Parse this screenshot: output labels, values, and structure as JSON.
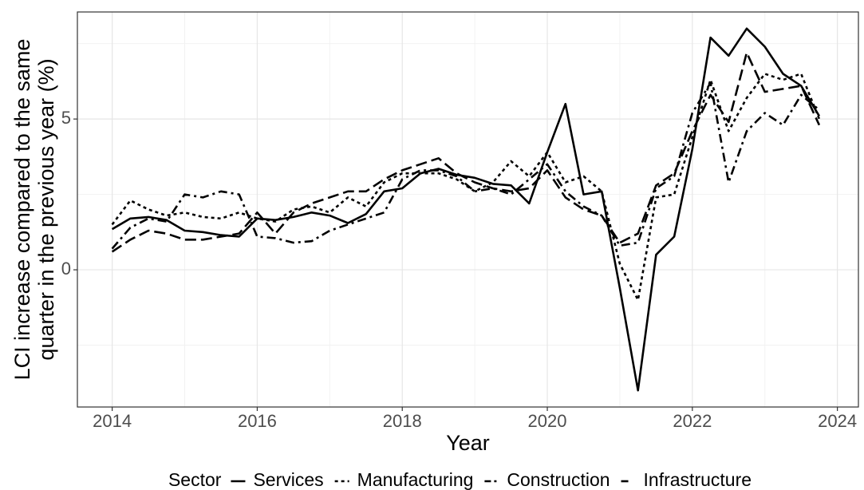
{
  "chart_data": {
    "type": "line",
    "ylabel": [
      "LCI increase compared to the same",
      "quarter in the previous year (%)"
    ],
    "xlabel": "Year",
    "legend_title": "Sector",
    "legend_position": "bottom",
    "grid": true,
    "x": [
      2014,
      2014.25,
      2014.5,
      2014.75,
      2015,
      2015.25,
      2015.5,
      2015.75,
      2016,
      2016.25,
      2016.5,
      2016.75,
      2017,
      2017.25,
      2017.5,
      2017.75,
      2018,
      2018.25,
      2018.5,
      2018.75,
      2019,
      2019.25,
      2019.5,
      2019.75,
      2020,
      2020.25,
      2020.5,
      2020.75,
      2021,
      2021.25,
      2021.5,
      2021.75,
      2022,
      2022.25,
      2022.5,
      2022.75,
      2023,
      2023.25,
      2023.5,
      2023.75
    ],
    "series": [
      {
        "name": "Services",
        "color": "#000000",
        "dash": "solid",
        "values": [
          1.35,
          1.7,
          1.75,
          1.65,
          1.3,
          1.25,
          1.15,
          1.1,
          1.7,
          1.65,
          1.75,
          1.9,
          1.8,
          1.55,
          1.85,
          2.6,
          2.7,
          3.2,
          3.35,
          3.15,
          3.05,
          2.85,
          2.8,
          2.2,
          3.9,
          5.5,
          2.5,
          2.6,
          -0.6,
          -4.0,
          0.5,
          1.1,
          4.0,
          7.7,
          7.1,
          8.0,
          7.4,
          6.5,
          6.1,
          5.1
        ]
      },
      {
        "name": "Manufacturing",
        "color": "#000000",
        "dash": "dotted",
        "values": [
          1.5,
          2.3,
          2.0,
          1.8,
          1.9,
          1.75,
          1.7,
          1.9,
          1.7,
          1.6,
          2.0,
          2.1,
          1.9,
          2.4,
          2.1,
          2.9,
          3.2,
          3.2,
          3.2,
          3.0,
          2.6,
          2.9,
          3.6,
          3.1,
          3.9,
          2.9,
          3.1,
          2.6,
          0.2,
          -1.0,
          2.4,
          2.5,
          4.4,
          6.3,
          4.6,
          5.7,
          6.5,
          6.3,
          6.5,
          5.0
        ]
      },
      {
        "name": "Construction",
        "color": "#000000",
        "dash": "dotdash",
        "values": [
          0.7,
          1.4,
          1.7,
          1.6,
          2.5,
          2.4,
          2.6,
          2.5,
          1.1,
          1.05,
          0.9,
          0.95,
          1.3,
          1.5,
          1.7,
          1.9,
          3.0,
          3.3,
          3.3,
          3.1,
          2.6,
          2.7,
          2.5,
          3.0,
          3.5,
          2.6,
          2.1,
          1.8,
          0.8,
          0.9,
          2.7,
          3.1,
          5.2,
          6.2,
          2.9,
          4.6,
          5.2,
          4.8,
          5.8,
          5.3
        ]
      },
      {
        "name": "Infrastructure",
        "color": "#000000",
        "dash": "longdash",
        "values": [
          0.6,
          1.0,
          1.3,
          1.2,
          1.0,
          1.0,
          1.1,
          1.2,
          1.9,
          1.2,
          1.9,
          2.2,
          2.4,
          2.6,
          2.6,
          3.0,
          3.3,
          3.5,
          3.7,
          3.2,
          2.9,
          2.7,
          2.6,
          2.7,
          3.3,
          2.4,
          2.0,
          1.8,
          0.9,
          1.2,
          2.8,
          3.2,
          4.6,
          5.8,
          4.9,
          7.2,
          5.9,
          6.0,
          6.1,
          4.8
        ]
      }
    ],
    "xlim": [
      2013.52,
      2024.29
    ],
    "xticks": [
      2014,
      2016,
      2018,
      2020,
      2022,
      2024
    ],
    "xminor": [
      2015,
      2017,
      2019,
      2021,
      2023
    ],
    "ylim": [
      -4.55,
      8.55
    ],
    "yticks": [
      0,
      5
    ],
    "yminor": [
      -2.5,
      2.5,
      7.5
    ]
  }
}
